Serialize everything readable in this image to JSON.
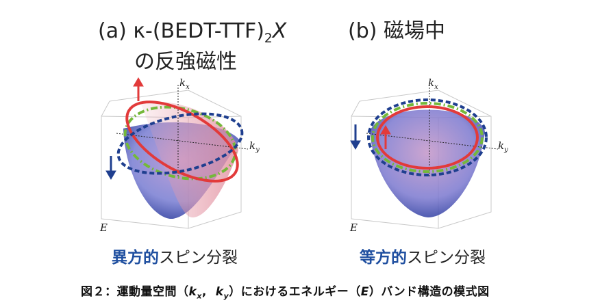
{
  "panel_a": {
    "label": "(a)",
    "title_main": "κ-(BEDT-TTF)",
    "title_sub": "2",
    "title_var": "X",
    "title_line2": "の反強磁性",
    "caption_em": "異方的",
    "caption_rest": "スピン分裂",
    "axis_kx": "k",
    "axis_kx_sub": "x",
    "axis_ky": "k",
    "axis_ky_sub": "y",
    "axis_e": "E"
  },
  "panel_b": {
    "label": "(b)",
    "title_main": "磁場中",
    "caption_em": "等方的",
    "caption_rest": "スピン分裂",
    "axis_kx": "k",
    "axis_kx_sub": "x",
    "axis_ky": "k",
    "axis_ky_sub": "y",
    "axis_e": "E"
  },
  "figure_caption": {
    "prefix": "図２：運動量空間（",
    "kx": "k",
    "kx_sub": "x",
    "sep": ",  ",
    "ky": "k",
    "ky_sub": "y",
    "mid": "）におけるエネルギー（",
    "e": "E",
    "suffix": "）バンド構造の模式図"
  },
  "colors": {
    "spin_up": "#e23a3a",
    "spin_down": "#1f3f8f",
    "degenerate": "#74b83a",
    "band_blue": "#5a66c8",
    "band_pink": "#d98a9a"
  }
}
